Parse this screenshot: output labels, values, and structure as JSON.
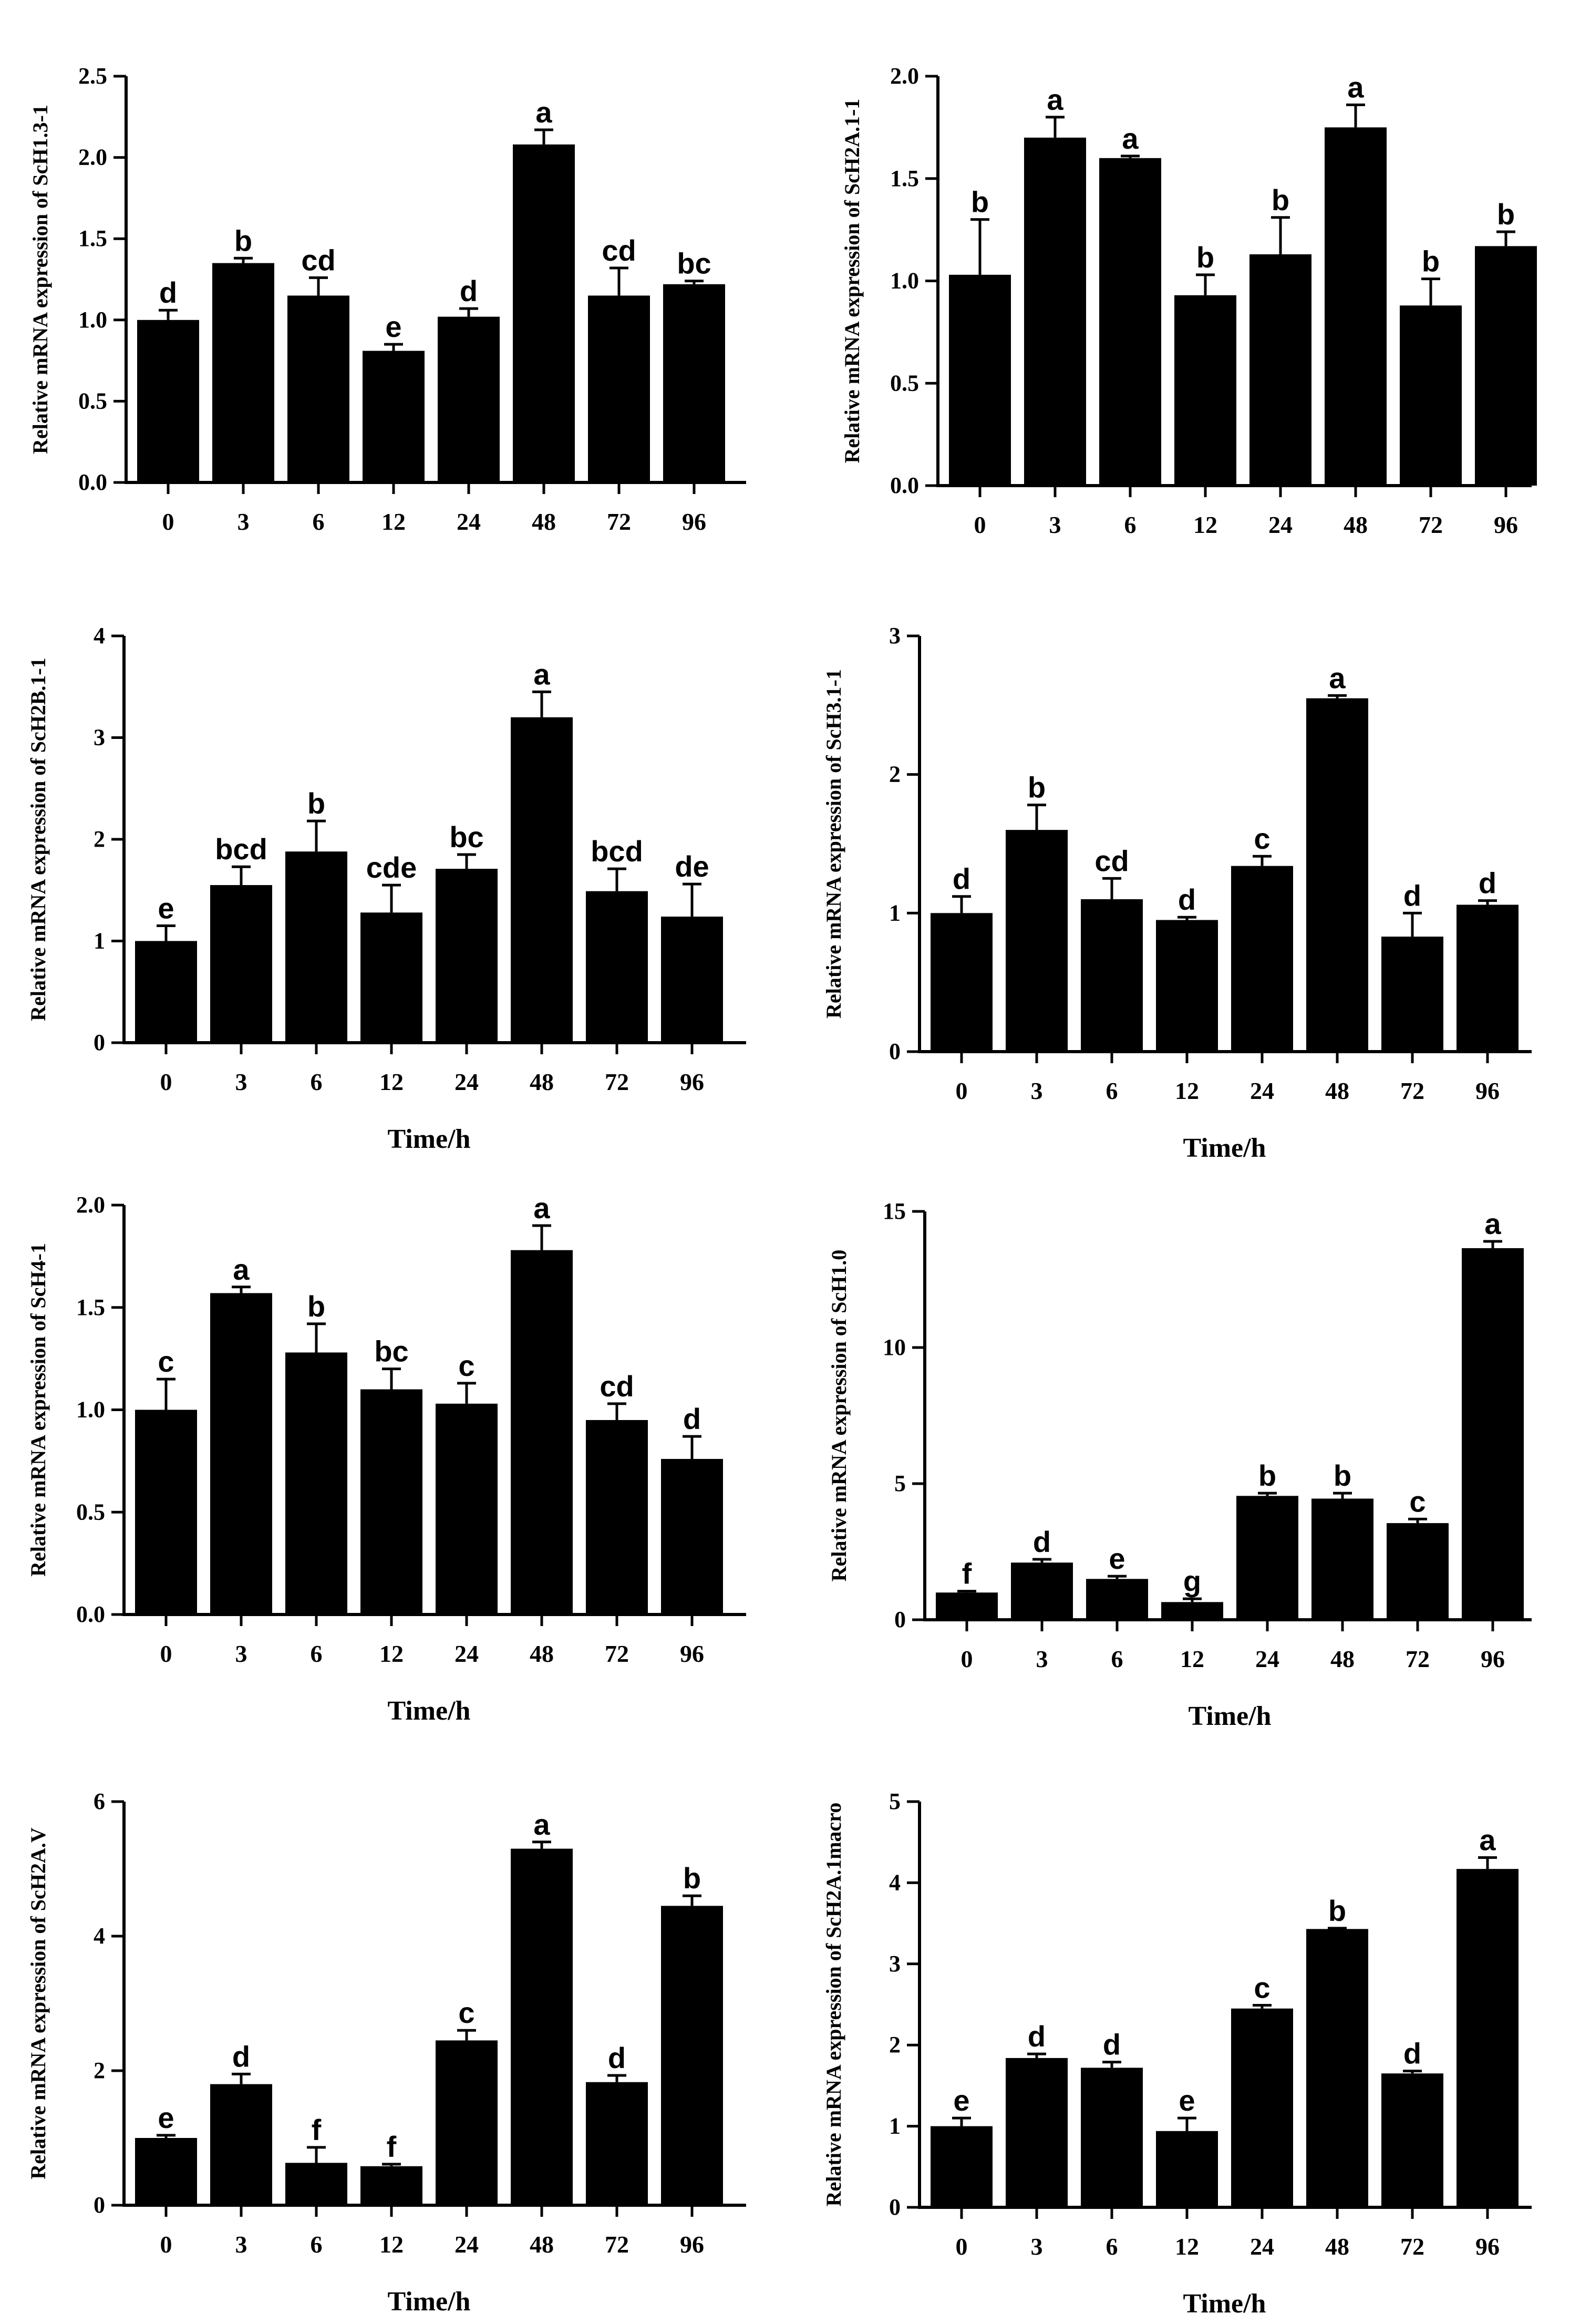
{
  "figure": {
    "categories": [
      "0",
      "3",
      "6",
      "12",
      "24",
      "48",
      "72",
      "96"
    ],
    "bar_color": "#000000",
    "text_color": "#000000"
  },
  "chart_data": [
    {
      "type": "bar",
      "title": "",
      "xlabel": "",
      "ylabel": "Relative mRNA expression of ScH1.3-1",
      "ylim": [
        0,
        2.5
      ],
      "yticks": [
        "0.0",
        "0.5",
        "1.0",
        "1.5",
        "2.0",
        "2.5"
      ],
      "categories": [
        "0",
        "3",
        "6",
        "12",
        "24",
        "48",
        "72",
        "96"
      ],
      "values": [
        1.0,
        1.35,
        1.15,
        0.81,
        1.02,
        2.08,
        1.15,
        1.22
      ],
      "errors": [
        0.06,
        0.03,
        0.11,
        0.04,
        0.05,
        0.09,
        0.17,
        0.02
      ],
      "letters": [
        "d",
        "b",
        "cd",
        "e",
        "d",
        "a",
        "cd",
        "bc"
      ]
    },
    {
      "type": "bar",
      "title": "",
      "xlabel": "",
      "ylabel": "Relative mRNA expression of ScH2A.1-1",
      "ylim": [
        0,
        2.0
      ],
      "yticks": [
        "0.0",
        "0.5",
        "1.0",
        "1.5",
        "2.0"
      ],
      "categories": [
        "0",
        "3",
        "6",
        "12",
        "24",
        "48",
        "72",
        "96"
      ],
      "values": [
        1.03,
        1.7,
        1.6,
        0.93,
        1.13,
        1.75,
        0.88,
        1.17
      ],
      "errors": [
        0.27,
        0.1,
        0.01,
        0.1,
        0.18,
        0.11,
        0.13,
        0.07
      ],
      "letters": [
        "b",
        "a",
        "a",
        "b",
        "b",
        "a",
        "b",
        "b"
      ]
    },
    {
      "type": "bar",
      "title": "",
      "xlabel": "Time/h",
      "ylabel": "Relative mRNA expression of ScH2B.1-1",
      "ylim": [
        0,
        4
      ],
      "yticks": [
        "0",
        "1",
        "2",
        "3",
        "4"
      ],
      "categories": [
        "0",
        "3",
        "6",
        "12",
        "24",
        "48",
        "72",
        "96"
      ],
      "values": [
        1.0,
        1.55,
        1.88,
        1.28,
        1.71,
        3.2,
        1.49,
        1.24
      ],
      "errors": [
        0.15,
        0.18,
        0.3,
        0.27,
        0.14,
        0.25,
        0.22,
        0.32
      ],
      "letters": [
        "e",
        "bcd",
        "b",
        "cde",
        "bc",
        "a",
        "bcd",
        "de"
      ]
    },
    {
      "type": "bar",
      "title": "",
      "xlabel": "Time/h",
      "ylabel": "Relative mRNA expression of ScH3.1-1",
      "ylim": [
        0,
        3
      ],
      "yticks": [
        "0",
        "1",
        "2",
        "3"
      ],
      "categories": [
        "0",
        "3",
        "6",
        "12",
        "24",
        "48",
        "72",
        "96"
      ],
      "values": [
        1.0,
        1.6,
        1.1,
        0.95,
        1.34,
        2.55,
        0.83,
        1.06
      ],
      "errors": [
        0.12,
        0.18,
        0.15,
        0.02,
        0.07,
        0.02,
        0.17,
        0.03
      ],
      "letters": [
        "d",
        "b",
        "cd",
        "d",
        "c",
        "a",
        "d",
        "d"
      ]
    },
    {
      "type": "bar",
      "title": "",
      "xlabel": "Time/h",
      "ylabel": "Relative mRNA expression of ScH4-1",
      "ylim": [
        0,
        2.0
      ],
      "yticks": [
        "0.0",
        "0.5",
        "1.0",
        "1.5",
        "2.0"
      ],
      "categories": [
        "0",
        "3",
        "6",
        "12",
        "24",
        "48",
        "72",
        "96"
      ],
      "values": [
        1.0,
        1.57,
        1.28,
        1.1,
        1.03,
        1.78,
        0.95,
        0.76
      ],
      "errors": [
        0.15,
        0.03,
        0.14,
        0.1,
        0.1,
        0.12,
        0.08,
        0.11
      ],
      "letters": [
        "c",
        "a",
        "b",
        "bc",
        "c",
        "a",
        "cd",
        "d"
      ]
    },
    {
      "type": "bar",
      "title": "",
      "xlabel": "Time/h",
      "ylabel": "Relative mRNA expression of ScH1.0",
      "ylim": [
        0,
        15
      ],
      "yticks": [
        "0",
        "5",
        "10",
        "15"
      ],
      "categories": [
        "0",
        "3",
        "6",
        "12",
        "24",
        "48",
        "72",
        "96"
      ],
      "values": [
        1.0,
        2.1,
        1.5,
        0.65,
        4.55,
        4.45,
        3.55,
        13.65
      ],
      "errors": [
        0.05,
        0.12,
        0.1,
        0.12,
        0.1,
        0.2,
        0.15,
        0.25
      ],
      "letters": [
        "f",
        "d",
        "e",
        "g",
        "b",
        "b",
        "c",
        "a"
      ]
    },
    {
      "type": "bar",
      "title": "",
      "xlabel": "Time/h",
      "ylabel": "Relative mRNA expression of ScH2A.V",
      "ylim": [
        0,
        6
      ],
      "yticks": [
        "0",
        "2",
        "4",
        "6"
      ],
      "categories": [
        "0",
        "3",
        "6",
        "12",
        "24",
        "48",
        "72",
        "96"
      ],
      "values": [
        1.0,
        1.8,
        0.63,
        0.58,
        2.45,
        5.3,
        1.83,
        4.45
      ],
      "errors": [
        0.04,
        0.15,
        0.23,
        0.03,
        0.15,
        0.1,
        0.1,
        0.15
      ],
      "letters": [
        "e",
        "d",
        "f",
        "f",
        "c",
        "a",
        "d",
        "b"
      ]
    },
    {
      "type": "bar",
      "title": "",
      "xlabel": "Time/h",
      "ylabel": "Relative mRNA expression of ScH2A.1macro",
      "ylim": [
        0,
        5
      ],
      "yticks": [
        "0",
        "1",
        "2",
        "3",
        "4",
        "5"
      ],
      "categories": [
        "0",
        "3",
        "6",
        "12",
        "24",
        "48",
        "72",
        "96"
      ],
      "values": [
        1.0,
        1.84,
        1.72,
        0.94,
        2.45,
        3.43,
        1.65,
        4.17
      ],
      "errors": [
        0.1,
        0.05,
        0.07,
        0.16,
        0.04,
        0.01,
        0.03,
        0.14
      ],
      "letters": [
        "e",
        "d",
        "d",
        "e",
        "c",
        "b",
        "d",
        "a"
      ]
    }
  ]
}
